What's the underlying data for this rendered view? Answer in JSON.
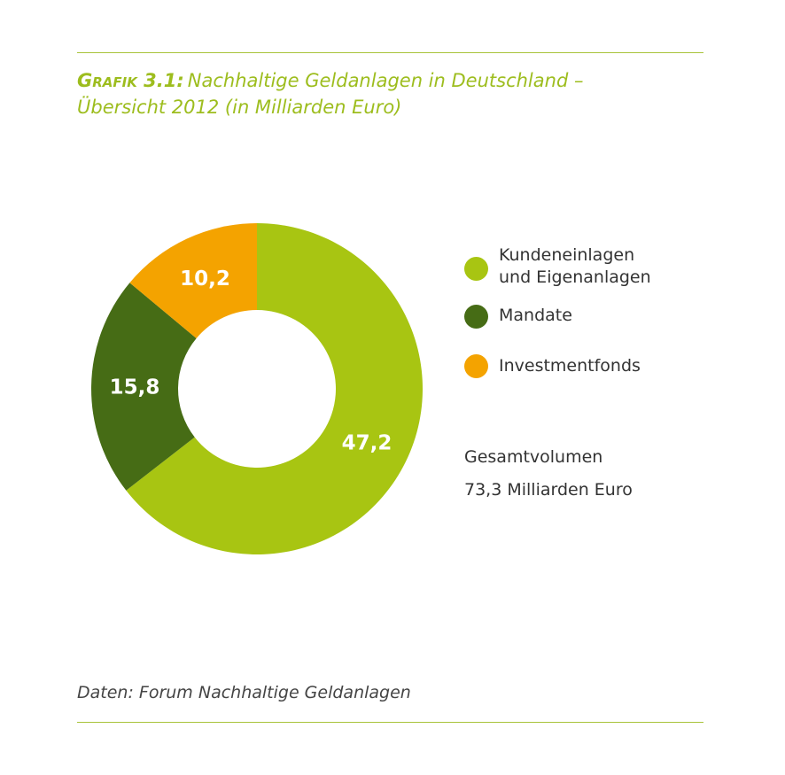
{
  "title": {
    "prefix": "Grafik 3.1:",
    "line1": "Nachhaltige Geldanlagen in Deutschland –",
    "line2": "Übersicht 2012 (in Milliarden Euro)"
  },
  "chart_data": {
    "type": "pie",
    "variant": "donut",
    "labels": [
      "Kundeneinlagen\nund Eigenanlagen",
      "Mandate",
      "Investmentfonds"
    ],
    "values": [
      47.2,
      15.8,
      10.2
    ],
    "value_labels": [
      "47,2",
      "15,8",
      "10,2"
    ],
    "colors": [
      "#a8c512",
      "#466c15",
      "#f4a300"
    ],
    "legend_position": "right"
  },
  "total": {
    "label": "Gesamtvolumen",
    "value": "73,3 Milliarden Euro"
  },
  "source": "Daten: Forum Nachhaltige Geldanlagen"
}
